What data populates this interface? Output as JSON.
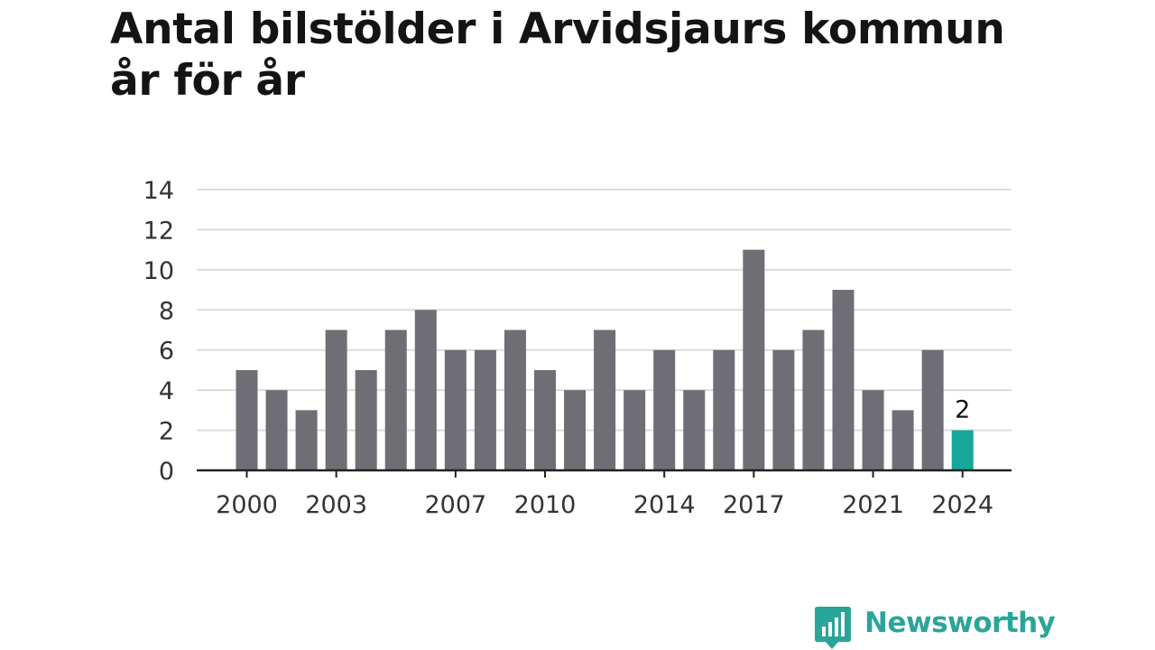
{
  "colors": {
    "bar": "#6f6e74",
    "highlight": "#16a69a",
    "grid": "#dcdcdc",
    "axis": "#222222",
    "text": "#141414",
    "brand": "#2aa59a"
  },
  "logo": {
    "text": "Newsworthy",
    "icon": "chart-bubble-icon"
  },
  "chart_data": {
    "type": "bar",
    "title": "Antal bilstölder i Arvidsjaurs kommun år för år",
    "xlabel": "",
    "ylabel": "",
    "ylim": [
      0,
      14
    ],
    "yticks": [
      0,
      2,
      4,
      6,
      8,
      10,
      12,
      14
    ],
    "xtick_labels": [
      "2000",
      "2003",
      "2007",
      "2010",
      "2014",
      "2017",
      "2021",
      "2024"
    ],
    "grid": true,
    "highlight_category": "2024",
    "data_labels": [
      {
        "category": "2024",
        "value": "2"
      }
    ],
    "categories": [
      "2000",
      "2001",
      "2002",
      "2003",
      "2004",
      "2005",
      "2006",
      "2007",
      "2008",
      "2009",
      "2010",
      "2011",
      "2012",
      "2013",
      "2014",
      "2015",
      "2016",
      "2017",
      "2018",
      "2019",
      "2020",
      "2021",
      "2022",
      "2023",
      "2024"
    ],
    "values": [
      5,
      4,
      3,
      7,
      5,
      7,
      8,
      6,
      6,
      7,
      5,
      4,
      7,
      4,
      6,
      4,
      6,
      11,
      6,
      7,
      9,
      4,
      3,
      6,
      2
    ]
  }
}
